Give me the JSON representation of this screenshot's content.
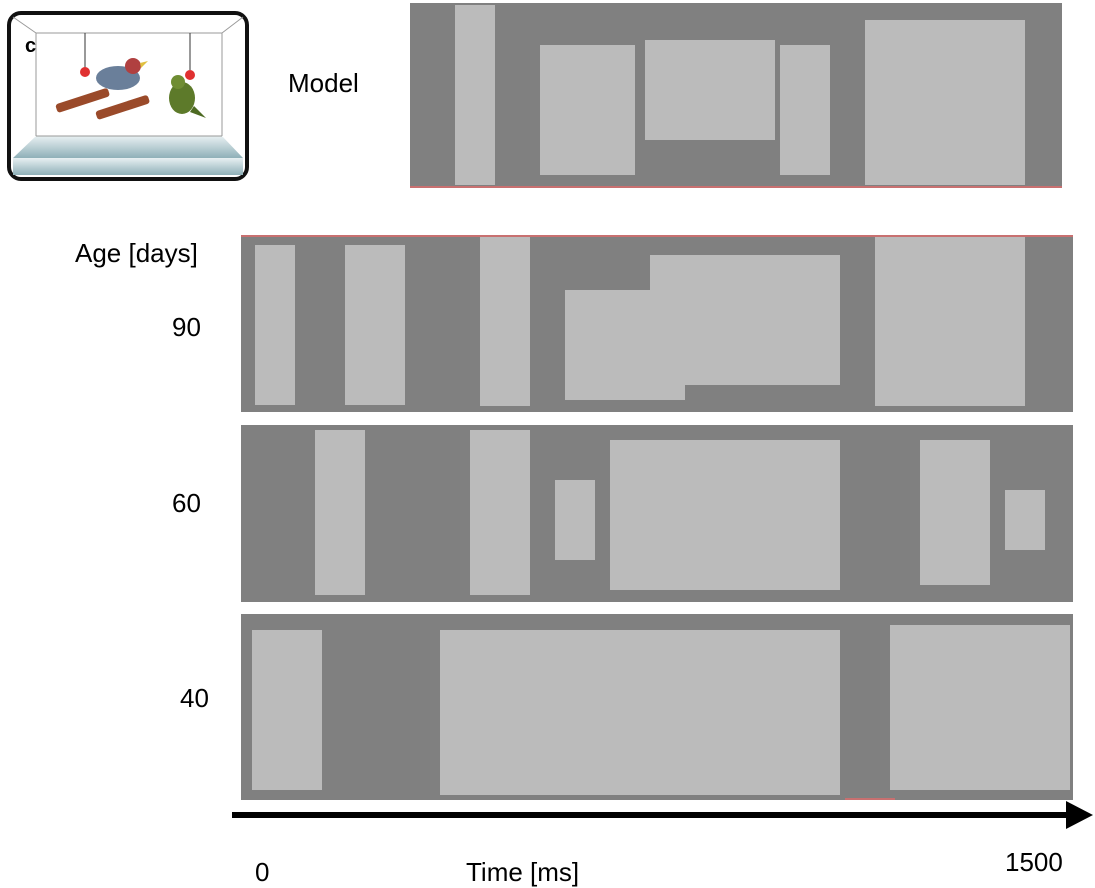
{
  "panel_label": "c",
  "model_label": "Model",
  "age_label": "Age [days]",
  "ages": [
    "90",
    "60",
    "40"
  ],
  "time_axis": {
    "start": "0",
    "label": "Time [ms]",
    "end": "1500"
  }
}
